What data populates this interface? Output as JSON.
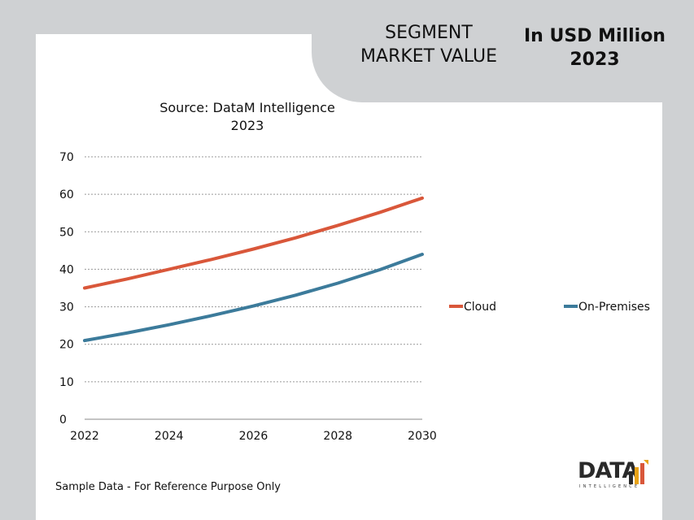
{
  "header": {
    "segment_title": "SEGMENT\nMARKET VALUE",
    "unit_title": "In USD Million\n2023"
  },
  "footnote": "Sample Data - For Reference Purpose Only",
  "logo": {
    "word": "DATA",
    "tagline": "INTELLIGENCE"
  },
  "colors": {
    "cloud": "#d9573a",
    "on_premises": "#3c7b9b",
    "background": "#cfd1d3"
  },
  "chart_data": {
    "type": "line",
    "title": "Source: DataM Intelligence\n2023",
    "x": [
      2022,
      2023,
      2024,
      2025,
      2026,
      2027,
      2028,
      2029,
      2030
    ],
    "xticks": [
      "2022",
      "2024",
      "2026",
      "2028",
      "2030"
    ],
    "xlim": [
      2022,
      2030
    ],
    "ylim": [
      0,
      70
    ],
    "yticks": [
      "0",
      "10",
      "20",
      "30",
      "40",
      "50",
      "60",
      "70"
    ],
    "grid": true,
    "legend_position": "right",
    "series": [
      {
        "name": "Cloud",
        "values": [
          35,
          37.4,
          40,
          42.6,
          45.4,
          48.4,
          51.7,
          55.2,
          59
        ]
      },
      {
        "name": "On-Premises",
        "values": [
          21,
          23,
          25.2,
          27.6,
          30.2,
          33.1,
          36.3,
          39.9,
          44
        ]
      }
    ]
  }
}
